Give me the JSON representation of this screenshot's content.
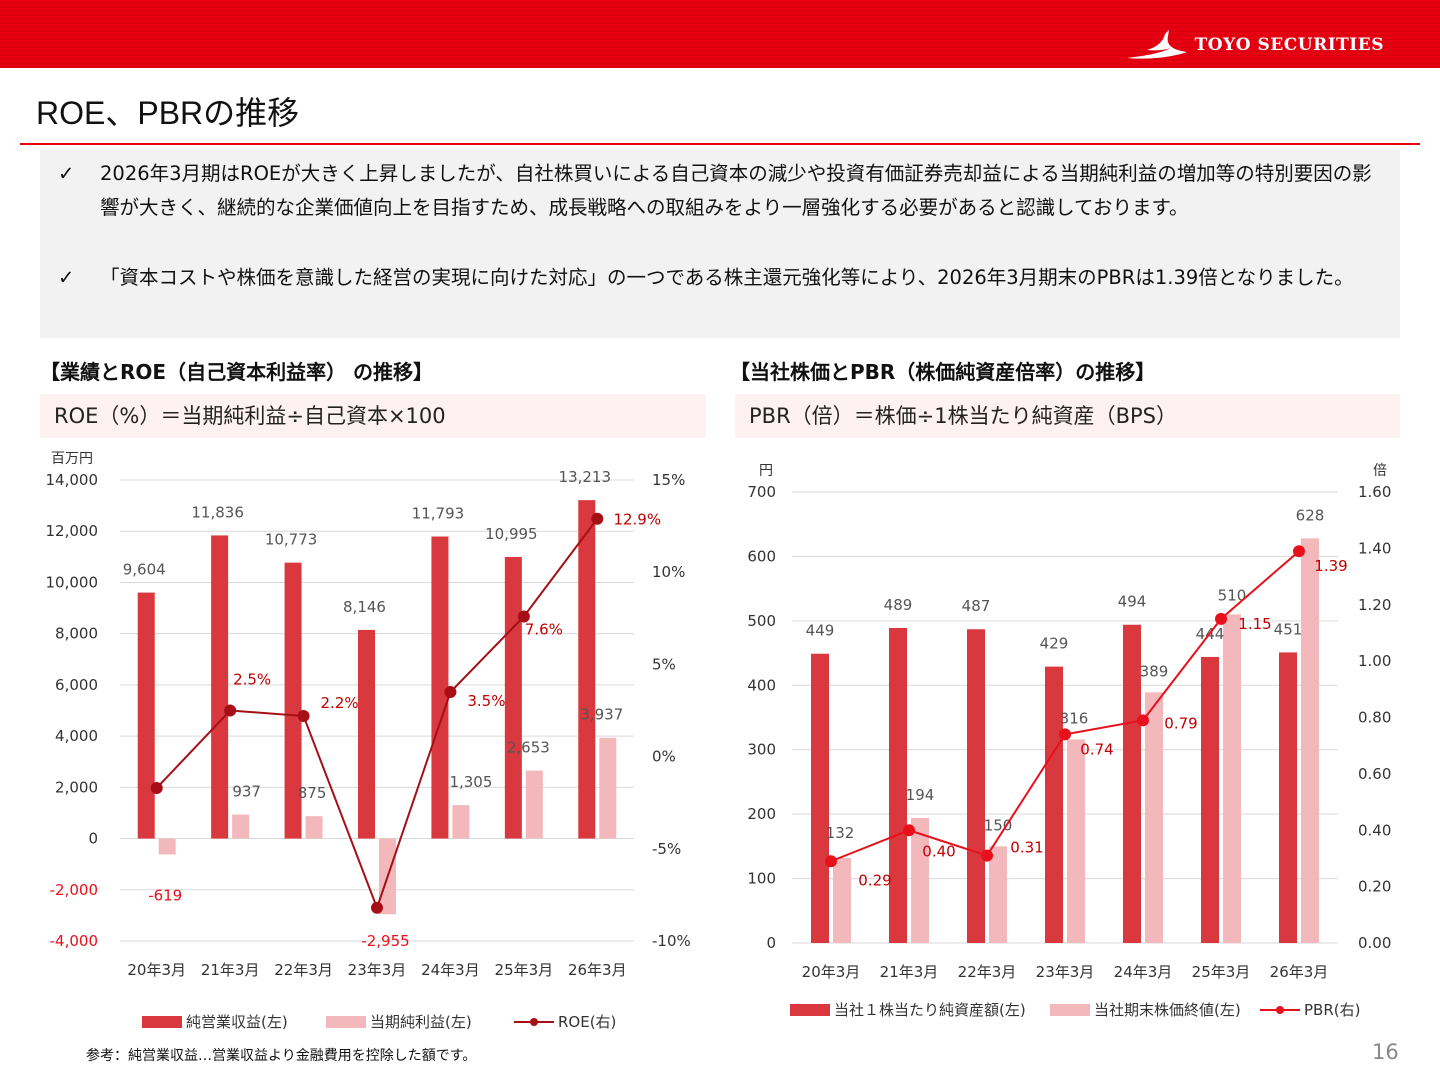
{
  "brand": {
    "name": "TOYO SECURITIES"
  },
  "page": {
    "title": "ROE、PBRの推移",
    "number": "16"
  },
  "notes": [
    {
      "mark": "✓",
      "text": "2026年3月期はROEが大きく上昇しましたが、自社株買いによる自己資本の減少や投資有価証券売却益による当期純利益の増加等の特別要因の影響が大きく、継続的な企業価値向上を目指すため、成長戦略への取組みをより一層強化する必要があると認識しております。"
    },
    {
      "mark": "✓",
      "text": "「資本コストや株価を意識した経営の実現に向けた対応」の一つである株主還元強化等により、2026年3月期末のPBRは1.39倍となりました。"
    }
  ],
  "left_panel": {
    "heading": "【業績とROE（自己資本利益率） の推移】",
    "formula": "ROE（%）＝当期純利益÷自己資本×100"
  },
  "right_panel": {
    "heading": "【当社株価とPBR（株価純資産倍率）の推移】",
    "formula": "PBR（倍）＝株価÷1株当たり純資産（BPS）"
  },
  "footnote": "参考：純営業収益…営業収益より金融費用を控除した額です。",
  "colors": {
    "brand_red": "#e60012",
    "bar_dark": "#d9383e",
    "bar_light": "#f2b8bb",
    "roe_line": "#a50f15",
    "pbr_line": "#e8101a",
    "label_red": "#c00000"
  },
  "chart_data": [
    {
      "type": "bar",
      "combo": "bar+line",
      "categories": [
        "20年3月",
        "21年3月",
        "22年3月",
        "23年3月",
        "24年3月",
        "25年3月",
        "26年3月"
      ],
      "y_unit_label": "百万円",
      "ylim": [
        -4000,
        14000
      ],
      "y_ticks": [
        "14,000",
        "12,000",
        "10,000",
        "8,000",
        "6,000",
        "4,000",
        "2,000",
        "0",
        "-2,000",
        "-4,000"
      ],
      "y2lim": [
        -10,
        15
      ],
      "y2_ticks": [
        "15%",
        "10%",
        "5%",
        "0%",
        "-5%",
        "-10%"
      ],
      "grid": true,
      "legend_position": "bottom",
      "series": [
        {
          "name": "純営業収益(左)",
          "type": "bar",
          "axis": "left",
          "values": [
            9604,
            11836,
            10773,
            8146,
            11793,
            10995,
            13213
          ],
          "labels": [
            "9,604",
            "11,836",
            "10,773",
            "8,146",
            "11,793",
            "10,995",
            "13,213"
          ]
        },
        {
          "name": "当期純利益(左)",
          "type": "bar",
          "axis": "left",
          "values": [
            -619,
            937,
            875,
            -2955,
            1305,
            2653,
            3937
          ],
          "labels": [
            "-619",
            "937",
            "875",
            "-2,955",
            "1,305",
            "2,653",
            "3,937"
          ]
        },
        {
          "name": "ROE(右)",
          "type": "line",
          "axis": "right",
          "values": [
            -1.7,
            2.5,
            2.2,
            -8.2,
            3.5,
            7.6,
            12.9
          ],
          "labels": [
            "",
            "2.5%",
            "2.2%",
            "",
            "3.5%",
            "7.6%",
            "12.9%"
          ]
        }
      ]
    },
    {
      "type": "bar",
      "combo": "bar+line",
      "categories": [
        "20年3月",
        "21年3月",
        "22年3月",
        "23年3月",
        "24年3月",
        "25年3月",
        "26年3月"
      ],
      "y_unit_label": "円",
      "y2_unit_label": "倍",
      "ylim": [
        0,
        700
      ],
      "y_ticks": [
        "700",
        "600",
        "500",
        "400",
        "300",
        "200",
        "100",
        "0"
      ],
      "y2lim": [
        0,
        1.6
      ],
      "y2_ticks": [
        "1.60",
        "1.40",
        "1.20",
        "1.00",
        "0.80",
        "0.60",
        "0.40",
        "0.20",
        "0.00"
      ],
      "grid": true,
      "legend_position": "bottom",
      "series": [
        {
          "name": "当社１株当たり純資産額(左)",
          "type": "bar",
          "axis": "left",
          "values": [
            449,
            489,
            487,
            429,
            494,
            444,
            451
          ],
          "labels": [
            "449",
            "489",
            "487",
            "429",
            "494",
            "444",
            "451"
          ]
        },
        {
          "name": "当社期末株価終値(左)",
          "type": "bar",
          "axis": "left",
          "values": [
            132,
            194,
            150,
            316,
            389,
            510,
            628
          ],
          "labels": [
            "132",
            "194",
            "150",
            "316",
            "389",
            "510",
            "628"
          ]
        },
        {
          "name": "PBR(右)",
          "type": "line",
          "axis": "right",
          "values": [
            0.29,
            0.4,
            0.31,
            0.74,
            0.79,
            1.15,
            1.39
          ],
          "labels": [
            "0.29",
            "0.40",
            "0.31",
            "0.74",
            "0.79",
            "1.15",
            "1.39"
          ]
        }
      ]
    }
  ]
}
